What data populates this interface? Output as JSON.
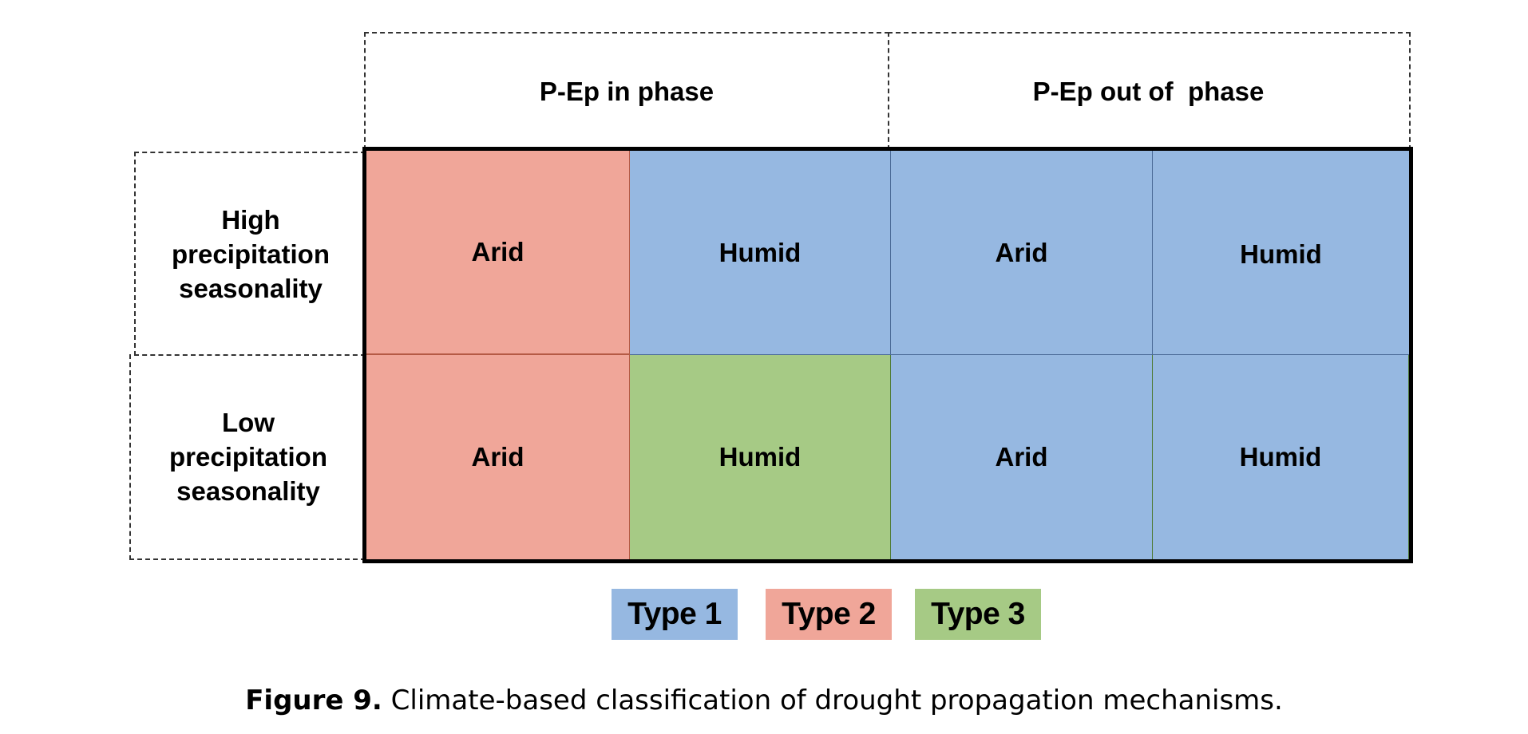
{
  "columns": {
    "in_phase": "P-Ep in phase",
    "out_of_phase": "P-Ep out of  phase"
  },
  "rows": {
    "high": [
      "High",
      "precipitation",
      "seasonality"
    ],
    "low": [
      "Low",
      "precipitation",
      "seasonality"
    ]
  },
  "cells": {
    "r1": [
      "Arid",
      "Humid",
      "Arid",
      "Humid"
    ],
    "r2": [
      "Arid",
      "Humid",
      "Arid",
      "Humid"
    ]
  },
  "cell_types": {
    "r1": [
      "Type 2",
      "Type 1",
      "Type 1",
      "Type 1"
    ],
    "r2": [
      "Type 2",
      "Type 3",
      "Type 1",
      "Type 1"
    ]
  },
  "legend": [
    {
      "label": "Type 1",
      "color": "#96b8e1"
    },
    {
      "label": "Type 2",
      "color": "#f0a699"
    },
    {
      "label": "Type 3",
      "color": "#a6ca85"
    }
  ],
  "caption": {
    "label": "Figure 9.",
    "text": " Climate-based classification of drought propagation mechanisms."
  }
}
